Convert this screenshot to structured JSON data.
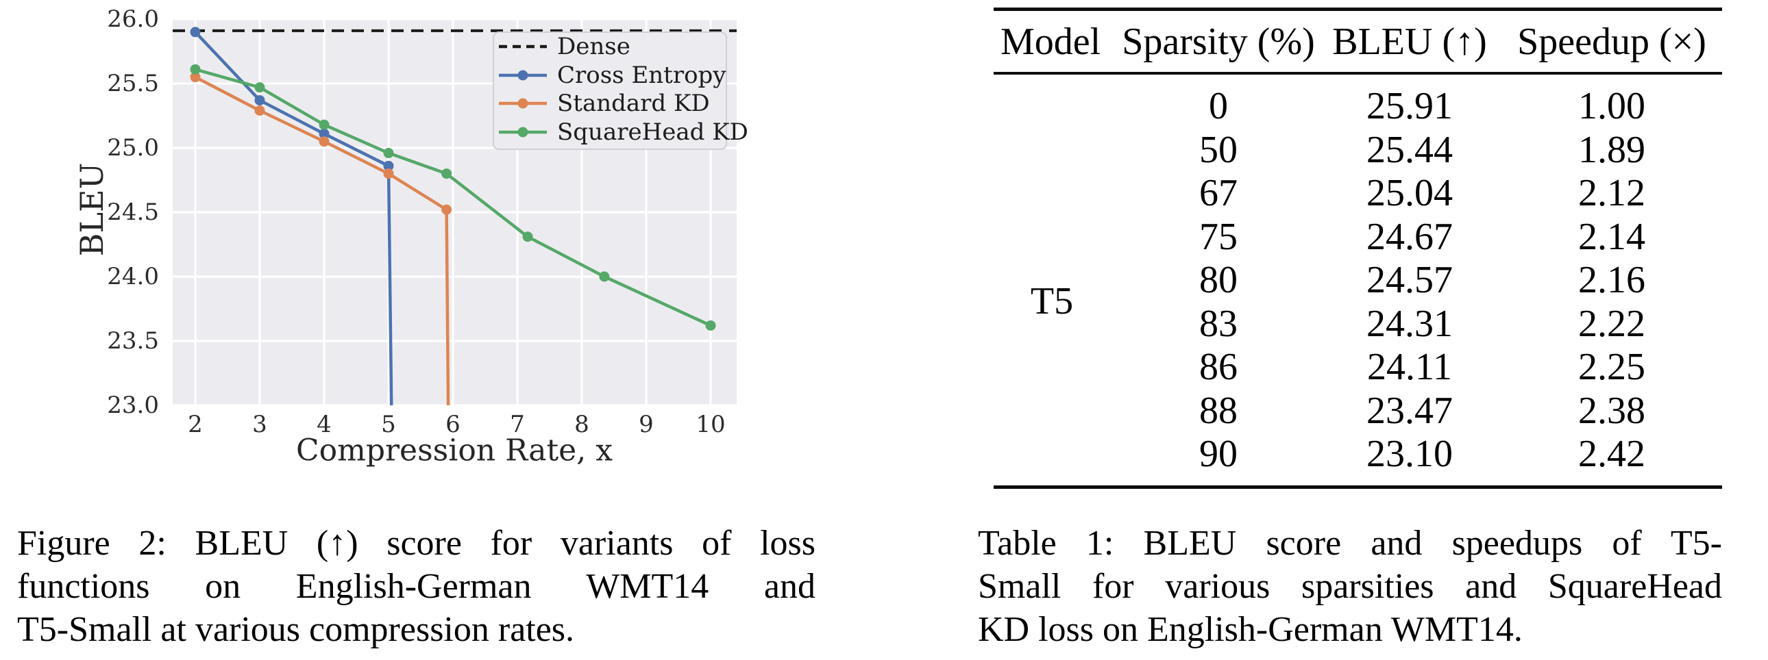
{
  "colors": {
    "plot_bg": "#ececf0",
    "grid": "#ffffff",
    "dense": "#1a1a1a",
    "cross_entropy": "#4c72b0",
    "standard_kd": "#dd8452",
    "squarehead_kd": "#55a868",
    "tick_text": "#2b2b2b",
    "legend_border": "#cfcfd6"
  },
  "chart_data": {
    "type": "line",
    "title": "",
    "xlabel": "Compression Rate, x",
    "ylabel": "BLEU",
    "xlim": [
      1.65,
      10.4
    ],
    "ylim": [
      23.0,
      26.0
    ],
    "grid": true,
    "legend_position": "upper right",
    "x_ticks": [
      2,
      3,
      4,
      5,
      6,
      7,
      8,
      9,
      10
    ],
    "x_tick_labels": [
      "2",
      "3",
      "4",
      "5",
      "6",
      "7",
      "8",
      "9",
      "10"
    ],
    "y_ticks": [
      23.0,
      23.5,
      24.0,
      24.5,
      25.0,
      25.5,
      26.0
    ],
    "y_tick_labels": [
      "23.0",
      "23.5",
      "24.0",
      "24.5",
      "25.0",
      "25.5",
      "26.0"
    ],
    "dense_baseline": {
      "label": "Dense",
      "value": 25.91,
      "style": "dashed",
      "color": "#1a1a1a"
    },
    "series": [
      {
        "name": "Cross Entropy",
        "color": "#4c72b0",
        "x": [
          2,
          3,
          4,
          5
        ],
        "y": [
          25.9,
          25.37,
          25.11,
          24.86
        ],
        "drop_off_x": 5.05
      },
      {
        "name": "Standard KD",
        "color": "#dd8452",
        "x": [
          2,
          3,
          4,
          5,
          5.9
        ],
        "y": [
          25.55,
          25.29,
          25.05,
          24.8,
          24.52
        ],
        "drop_off_x": 5.93
      },
      {
        "name": "SquareHead KD",
        "color": "#55a868",
        "x": [
          2,
          3,
          4,
          5,
          5.9,
          7.16,
          8.35,
          10
        ],
        "y": [
          25.61,
          25.47,
          25.18,
          24.96,
          24.8,
          24.31,
          24.0,
          23.62
        ],
        "drop_off_x": null
      }
    ]
  },
  "table": {
    "headers": [
      "Model",
      "Sparsity (%)",
      "BLEU (↑)",
      "Speedup (×)"
    ],
    "model_label": "T5",
    "rows": [
      [
        "0",
        "25.91",
        "1.00"
      ],
      [
        "50",
        "25.44",
        "1.89"
      ],
      [
        "67",
        "25.04",
        "2.12"
      ],
      [
        "75",
        "24.67",
        "2.14"
      ],
      [
        "80",
        "24.57",
        "2.16"
      ],
      [
        "83",
        "24.31",
        "2.22"
      ],
      [
        "86",
        "24.11",
        "2.25"
      ],
      [
        "88",
        "23.47",
        "2.38"
      ],
      [
        "90",
        "23.10",
        "2.42"
      ]
    ]
  },
  "captions": {
    "figure_lines": [
      "Figure 2: BLEU (↑) score for variants of loss",
      "functions on English-German WMT14 and",
      "T5-Small at various compression rates."
    ],
    "table_lines": [
      "Table 1: BLEU score and speedups of T5-",
      "Small for various sparsities and SquareHead",
      "KD loss on English-German WMT14."
    ]
  }
}
